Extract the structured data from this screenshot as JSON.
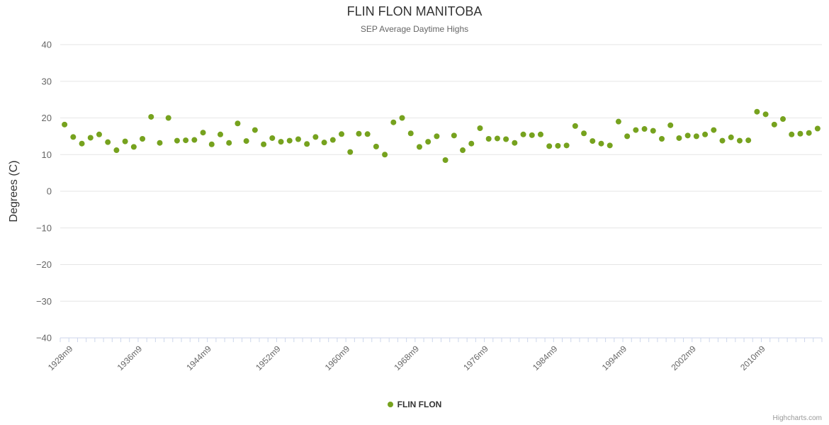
{
  "chart_data": {
    "type": "scatter",
    "title": "FLIN FLON MANITOBA",
    "subtitle": "SEP Average Daytime Highs",
    "xlabel": "",
    "ylabel": "Degrees (C)",
    "ylim": [
      -40,
      40
    ],
    "yticks": [
      -40,
      -30,
      -20,
      -10,
      0,
      10,
      20,
      30,
      40
    ],
    "grid": true,
    "legend_position": "bottom-center",
    "series_name": "FLIN FLON",
    "marker_color": "#76A21E",
    "grid_color": "#E6E6E6",
    "axis_color": "#CCD6EB",
    "label_color": "#666666",
    "categories": [
      "1927m9",
      "1928m9",
      "1929m9",
      "1930m9",
      "1931m9",
      "1932m9",
      "1933m9",
      "1934m9",
      "1935m9",
      "1936m9",
      "1937m9",
      "1938m9",
      "1939m9",
      "1940m9",
      "1941m9",
      "1942m9",
      "1943m9",
      "1944m9",
      "1945m9",
      "1946m9",
      "1947m9",
      "1948m9",
      "1949m9",
      "1950m9",
      "1951m9",
      "1952m9",
      "1953m9",
      "1954m9",
      "1955m9",
      "1956m9",
      "1957m9",
      "1958m9",
      "1959m9",
      "1960m9",
      "1961m9",
      "1962m9",
      "1963m9",
      "1964m9",
      "1965m9",
      "1966m9",
      "1967m9",
      "1968m9",
      "1969m9",
      "1970m9",
      "1971m9",
      "1972m9",
      "1973m9",
      "1974m9",
      "1975m9",
      "1976m9",
      "1977m9",
      "1978m9",
      "1979m9",
      "1980m9",
      "1981m9",
      "1982m9",
      "1983m9",
      "1984m9",
      "1985m9",
      "1987m9",
      "1988m9",
      "1990m9",
      "1991m9",
      "1992m9",
      "1993m9",
      "1994m9",
      "1995m9",
      "1996m9",
      "1997m9",
      "1998m9",
      "1999m9",
      "2000m9",
      "2001m9",
      "2002m9",
      "2003m9",
      "2004m9",
      "2005m9",
      "2006m9",
      "2007m9",
      "2008m9",
      "2009m9",
      "2010m9",
      "2011m9",
      "2012m9",
      "2013m9",
      "2014m9",
      "2015m9",
      "2016m9"
    ],
    "values": [
      18.2,
      14.8,
      13.0,
      14.6,
      15.5,
      13.4,
      11.2,
      13.6,
      12.1,
      14.3,
      20.3,
      13.2,
      20.0,
      13.8,
      13.9,
      14.0,
      16.0,
      12.8,
      15.5,
      13.2,
      18.5,
      13.7,
      16.7,
      12.8,
      14.5,
      13.5,
      13.8,
      14.2,
      12.9,
      14.8,
      13.3,
      14.0,
      15.6,
      10.7,
      15.7,
      15.6,
      12.2,
      10.0,
      18.8,
      20.0,
      15.8,
      12.1,
      13.5,
      15.0,
      8.5,
      15.2,
      11.2,
      13.0,
      17.2,
      14.3,
      14.4,
      14.2,
      13.2,
      15.5,
      15.3,
      15.5,
      12.3,
      12.4,
      12.5,
      17.8,
      15.8,
      13.7,
      13.0,
      12.5,
      19.0,
      15.0,
      16.7,
      17.0,
      16.5,
      14.3,
      18.0,
      14.5,
      15.2,
      15.0,
      15.5,
      16.7,
      13.8,
      14.7,
      13.8,
      13.9,
      21.7,
      21.0,
      18.2,
      19.7,
      15.5,
      15.7,
      15.9,
      17.1
    ],
    "xtick_indices": [
      1,
      9,
      17,
      25,
      33,
      41,
      49,
      57,
      65,
      73,
      81
    ],
    "xtick_labels": [
      "1928m9",
      "1936m9",
      "1944m9",
      "1952m9",
      "1960m9",
      "1968m9",
      "1976m9",
      "1984m9",
      "1994m9",
      "2002m9",
      "2010m9"
    ]
  },
  "credits": "Highcharts.com"
}
